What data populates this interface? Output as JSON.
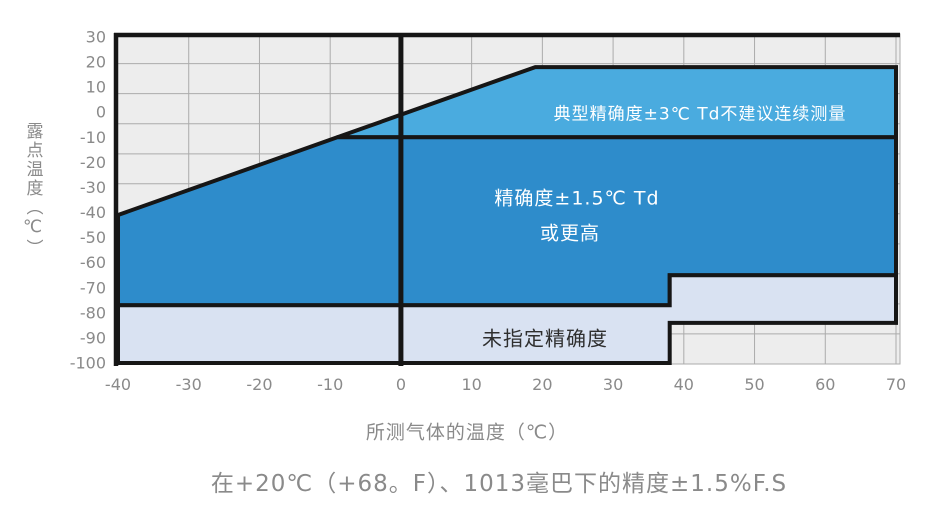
{
  "colors": {
    "plot_background": "#ededed",
    "gridline": "#ababab",
    "outline_black": "#161616",
    "tick_text": "#8a8a8a",
    "typical_region_blue": "#4aabdf",
    "high_accuracy_blue": "#2e8ccb",
    "unspecified_lavender": "#d9e2f2"
  },
  "chart_data": {
    "type": "area",
    "title": "",
    "xlabel": "所测气体的温度（℃）",
    "ylabel": "露点温度（℃）",
    "note": "在+20℃（+68。F）、1013毫巴下的精度±1.5%F.S",
    "xlim": [
      -40,
      70
    ],
    "ylim": [
      -100,
      30
    ],
    "x_ticks": [
      -40,
      -30,
      -20,
      -10,
      0,
      10,
      20,
      30,
      40,
      50,
      60,
      70
    ],
    "y_ticks": [
      30,
      20,
      10,
      0,
      -10,
      -20,
      -30,
      -40,
      -50,
      -60,
      -70,
      -80,
      -90,
      -100
    ],
    "grid": true,
    "legend": false,
    "h_gridlines": [
      19.4,
      7.4,
      -4.6,
      -16.6,
      -28.5,
      -40.5,
      -52.5,
      -64.4,
      -76.4,
      -88.4
    ],
    "v_gridlines": [
      -30,
      -20,
      -10,
      10,
      20,
      30,
      40,
      50,
      60,
      70
    ],
    "zero_reference_line_x": 0,
    "regions": [
      {
        "name": "typical-accuracy-region",
        "label": "典型精确度±3℃ Td不建议连续测量",
        "color": "#4aabdf",
        "points": [
          [
            -9,
            -10
          ],
          [
            19,
            18
          ],
          [
            70,
            18
          ],
          [
            70,
            -10
          ]
        ]
      },
      {
        "name": "high-accuracy-region",
        "label": "精确度±1.5℃ Td 或更高",
        "label_lines": [
          "精确度±1.5℃ Td",
          "或更高"
        ],
        "color": "#2e8ccb",
        "points": [
          [
            -40,
            -41
          ],
          [
            -9,
            -10
          ],
          [
            70,
            -10
          ],
          [
            70,
            -65
          ],
          [
            38,
            -65
          ],
          [
            38,
            -77
          ],
          [
            -40,
            -77
          ]
        ]
      },
      {
        "name": "unspecified-accuracy-region",
        "label": "未指定精确度",
        "color": "#d9e2f2",
        "points": [
          [
            -40,
            -77
          ],
          [
            38,
            -77
          ],
          [
            38,
            -65
          ],
          [
            70,
            -65
          ],
          [
            70,
            -84
          ],
          [
            38,
            -84
          ],
          [
            38,
            -100
          ],
          [
            -40,
            -100
          ]
        ]
      }
    ]
  }
}
